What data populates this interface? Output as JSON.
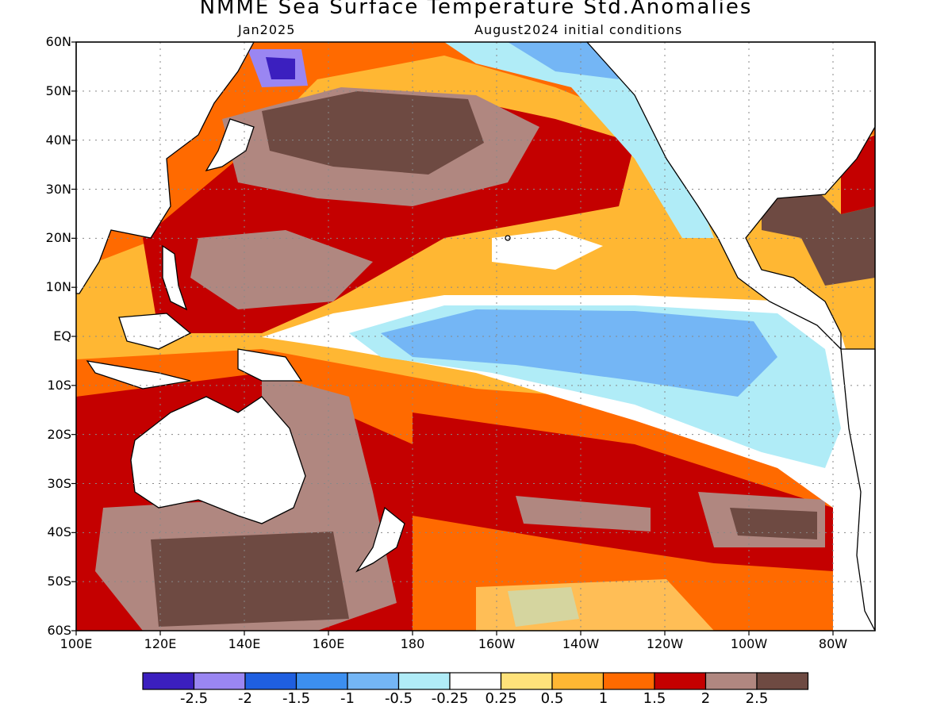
{
  "title": "NMME Sea Surface Temperature Std.Anomalies",
  "subtitle_left": "Jan2025",
  "subtitle_right": "August2024 initial conditions",
  "lat_labels": [
    "60N",
    "50N",
    "40N",
    "30N",
    "20N",
    "10N",
    "EQ",
    "10S",
    "20S",
    "30S",
    "40S",
    "50S",
    "60S"
  ],
  "lon_labels": [
    "100E",
    "120E",
    "140E",
    "160E",
    "180",
    "160W",
    "140W",
    "120W",
    "100W",
    "80W"
  ],
  "colorbar": {
    "colors": [
      "#3b1fbf",
      "#9a86f2",
      "#1f5fe0",
      "#3c8ff0",
      "#74b6f5",
      "#b0ecf7",
      "#ffffff",
      "#ffe27a",
      "#ffb733",
      "#ff6a00",
      "#c40000",
      "#b08780",
      "#6e4a42"
    ],
    "labels": [
      "-2.5",
      "-2",
      "-1.5",
      "-1",
      "-0.5",
      "-0.25",
      "0.25",
      "0.5",
      "1",
      "1.5",
      "2",
      "2.5"
    ]
  },
  "colors": {
    "frame": "#000000",
    "coast": "#000000",
    "grid": "#888888",
    "land": "#ffffff"
  }
}
